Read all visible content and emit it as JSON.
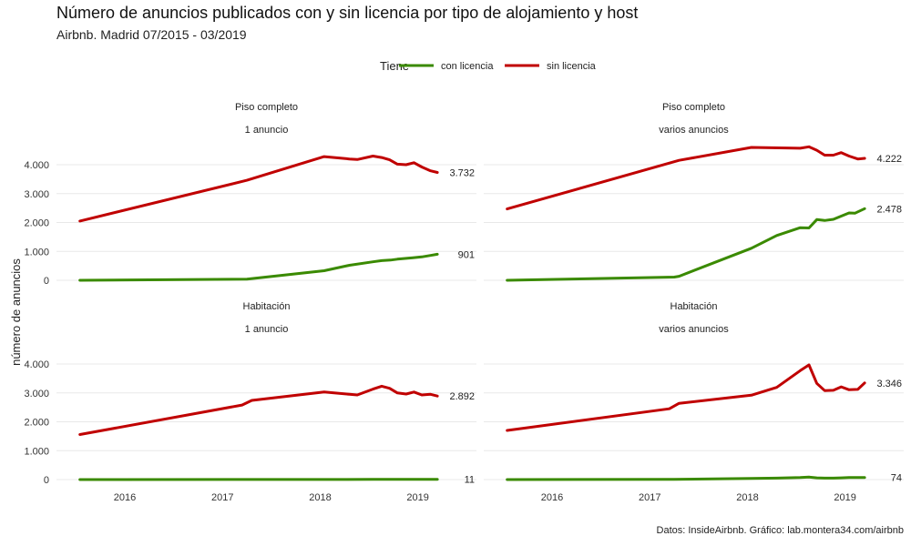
{
  "title": "Número de anuncios publicados con y sin licencia por tipo de alojamiento y host",
  "subtitle": "Airbnb. Madrid 07/2015 - 03/2019",
  "caption": "Datos: InsideAirbnb. Gráfico: lab.montera34.com/airbnb",
  "colors": {
    "con_licencia": "#3a8a00",
    "sin_licencia": "#c00000",
    "grid": "#e8e8e8"
  },
  "chart_data": {
    "type": "line",
    "ylabel": "número de anuncios",
    "legend": {
      "title": "Tiene",
      "position": "top",
      "entries": [
        "con licencia",
        "sin licencia"
      ]
    },
    "xlim": [
      2015.3,
      2019.6
    ],
    "ylim": [
      0,
      4600
    ],
    "x_ticks": [
      2016,
      2017,
      2018,
      2019
    ],
    "x_tick_labels": [
      "2016",
      "2017",
      "2018",
      "2019"
    ],
    "y_ticks": [
      0,
      1000,
      2000,
      3000,
      4000
    ],
    "y_tick_labels": [
      "0",
      "1.000",
      "2.000",
      "3.000",
      "4.000"
    ],
    "grid": true,
    "panels": [
      {
        "label_line1": "Piso completo",
        "label_line2": "1 anuncio",
        "series": [
          {
            "name": "con licencia",
            "end_label": "901",
            "x": [
              2015.54,
              2017.25,
              2018.04,
              2018.3,
              2018.54,
              2018.63,
              2018.72,
              2018.79,
              2018.95,
              2019.04,
              2019.13,
              2019.2
            ],
            "y": [
              0,
              40,
              330,
              520,
              640,
              680,
              700,
              730,
              780,
              810,
              860,
              901
            ]
          },
          {
            "name": "sin licencia",
            "end_label": "3.732",
            "x": [
              2015.54,
              2017.25,
              2018.04,
              2018.3,
              2018.38,
              2018.54,
              2018.63,
              2018.71,
              2018.79,
              2018.88,
              2018.96,
              2019.04,
              2019.13,
              2019.2
            ],
            "y": [
              2050,
              3460,
              4280,
              4200,
              4180,
              4300,
              4250,
              4170,
              4020,
              4000,
              4070,
              3920,
              3790,
              3732
            ]
          }
        ]
      },
      {
        "label_line1": "Piso completo",
        "label_line2": "varios anuncios",
        "series": [
          {
            "name": "con licencia",
            "end_label": "2.478",
            "x": [
              2015.54,
              2017.25,
              2017.3,
              2018.04,
              2018.3,
              2018.54,
              2018.63,
              2018.71,
              2018.79,
              2018.88,
              2018.96,
              2019.04,
              2019.1,
              2019.13,
              2019.2
            ],
            "y": [
              0,
              110,
              140,
              1110,
              1550,
              1820,
              1810,
              2100,
              2070,
              2110,
              2220,
              2330,
              2320,
              2370,
              2478
            ]
          },
          {
            "name": "sin licencia",
            "end_label": "4.222",
            "x": [
              2015.54,
              2017.3,
              2018.04,
              2018.54,
              2018.63,
              2018.71,
              2018.79,
              2018.88,
              2018.96,
              2019.04,
              2019.13,
              2019.2
            ],
            "y": [
              2470,
              4150,
              4600,
              4570,
              4620,
              4500,
              4330,
              4330,
              4420,
              4300,
              4200,
              4222
            ]
          }
        ]
      },
      {
        "label_line1": "Habitación",
        "label_line2": "1 anuncio",
        "series": [
          {
            "name": "con licencia",
            "end_label": "11",
            "x": [
              2015.54,
              2017.25,
              2018.04,
              2018.54,
              2018.79,
              2019.04,
              2019.2
            ],
            "y": [
              0,
              2,
              4,
              6,
              8,
              9,
              11
            ]
          },
          {
            "name": "sin licencia",
            "end_label": "2.892",
            "x": [
              2015.54,
              2017.2,
              2017.3,
              2018.04,
              2018.3,
              2018.38,
              2018.54,
              2018.63,
              2018.71,
              2018.79,
              2018.88,
              2018.96,
              2019.04,
              2019.13,
              2019.2
            ],
            "y": [
              1560,
              2580,
              2740,
              3030,
              2950,
              2930,
              3130,
              3230,
              3160,
              3000,
              2960,
              3030,
              2930,
              2950,
              2892
            ]
          }
        ]
      },
      {
        "label_line1": "Habitación",
        "label_line2": "varios anuncios",
        "series": [
          {
            "name": "con licencia",
            "end_label": "74",
            "x": [
              2015.54,
              2017.25,
              2018.04,
              2018.3,
              2018.54,
              2018.63,
              2018.71,
              2018.79,
              2018.88,
              2018.96,
              2019.04,
              2019.13,
              2019.2
            ],
            "y": [
              0,
              5,
              40,
              50,
              70,
              85,
              60,
              50,
              50,
              60,
              70,
              70,
              74
            ]
          },
          {
            "name": "sin licencia",
            "end_label": "3.346",
            "x": [
              2015.54,
              2017.2,
              2017.3,
              2018.04,
              2018.3,
              2018.54,
              2018.63,
              2018.71,
              2018.79,
              2018.88,
              2018.96,
              2019.04,
              2019.13,
              2019.2
            ],
            "y": [
              1700,
              2450,
              2640,
              2920,
              3190,
              3770,
              3970,
              3330,
              3080,
              3090,
              3210,
              3110,
              3120,
              3346
            ]
          }
        ]
      }
    ]
  }
}
